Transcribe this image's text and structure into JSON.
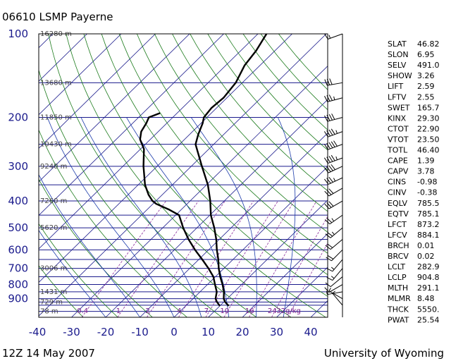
{
  "header": {
    "title": "06610 LSMP Payerne"
  },
  "footer": {
    "left": "12Z 14 May 2007",
    "right": "University of Wyoming"
  },
  "colors": {
    "isobar": "#1a1a8c",
    "isotherm": "#1a1a8c",
    "dry_adiabat": "#1a7a1a",
    "moist_adiabat": "#1a3aaa",
    "mixing_ratio": "#8a2a9a",
    "profile": "#000000"
  },
  "chart_data": {
    "type": "line",
    "title": "06610 LSMP Payerne",
    "xlabel": "",
    "ylabel": "",
    "pressure_levels": [
      100,
      200,
      300,
      400,
      500,
      600,
      700,
      800,
      900
    ],
    "pressure_tick_labels": [
      "100",
      "200",
      "300",
      "400",
      "500",
      "600",
      "700",
      "800",
      "900"
    ],
    "isobars_drawn": [
      100,
      150,
      200,
      250,
      300,
      350,
      400,
      450,
      500,
      550,
      600,
      650,
      700,
      750,
      800,
      850,
      900,
      925,
      950,
      1000
    ],
    "temperature_ticks": [
      -40,
      -30,
      -20,
      -10,
      0,
      10,
      20,
      30,
      40
    ],
    "temperature_tick_labels": [
      "-40",
      "-30",
      "-20",
      "-10",
      "0",
      "10",
      "20",
      "30",
      "40"
    ],
    "xlim": [
      -40,
      45
    ],
    "ylim": [
      1050,
      100
    ],
    "log_pressure": true,
    "skew": true,
    "height_labels": [
      {
        "p": 100,
        "label": "16280 m"
      },
      {
        "p": 150,
        "label": "13680 m"
      },
      {
        "p": 200,
        "label": "11850 m"
      },
      {
        "p": 250,
        "label": "10430 m"
      },
      {
        "p": 300,
        "label": "9240 m"
      },
      {
        "p": 400,
        "label": "7260 m"
      },
      {
        "p": 500,
        "label": "5620 m"
      },
      {
        "p": 700,
        "label": "3006 m"
      },
      {
        "p": 850,
        "label": "1431 m"
      },
      {
        "p": 925,
        "label": "729 m"
      },
      {
        "p": 1000,
        "label": "78 m"
      }
    ],
    "mixing_ratio_labels": [
      "0.4",
      "1",
      "2",
      "4",
      "7",
      "10",
      "16",
      "24",
      "32g/kg"
    ],
    "mixing_ratio_values": [
      0.4,
      1,
      2,
      4,
      7,
      10,
      16,
      24,
      32
    ],
    "series": [
      {
        "key": "temperature",
        "points": [
          {
            "p": 955,
            "t": 12.6
          },
          {
            "p": 925,
            "t": 10.4
          },
          {
            "p": 900,
            "t": 9.0
          },
          {
            "p": 850,
            "t": 7.0
          },
          {
            "p": 800,
            "t": 4.4
          },
          {
            "p": 750,
            "t": 1.4
          },
          {
            "p": 700,
            "t": -1.5
          },
          {
            "p": 650,
            "t": -4.3
          },
          {
            "p": 600,
            "t": -7.6
          },
          {
            "p": 550,
            "t": -10.9
          },
          {
            "p": 500,
            "t": -14.9
          },
          {
            "p": 450,
            "t": -19.7
          },
          {
            "p": 400,
            "t": -24.1
          },
          {
            "p": 350,
            "t": -29.6
          },
          {
            "p": 300,
            "t": -36.9
          },
          {
            "p": 250,
            "t": -45.3
          },
          {
            "p": 230,
            "t": -47.5
          },
          {
            "p": 210,
            "t": -49.5
          },
          {
            "p": 200,
            "t": -50.9
          },
          {
            "p": 185,
            "t": -51.5
          },
          {
            "p": 170,
            "t": -51.0
          },
          {
            "p": 150,
            "t": -51.9
          },
          {
            "p": 130,
            "t": -54.5
          },
          {
            "p": 115,
            "t": -55.5
          },
          {
            "p": 100,
            "t": -57.5
          }
        ]
      },
      {
        "key": "dewpoint",
        "points": [
          {
            "p": 955,
            "t": 10.0
          },
          {
            "p": 925,
            "t": 8.0
          },
          {
            "p": 900,
            "t": 6.6
          },
          {
            "p": 850,
            "t": 4.9
          },
          {
            "p": 800,
            "t": 2.2
          },
          {
            "p": 750,
            "t": -0.6
          },
          {
            "p": 700,
            "t": -4.5
          },
          {
            "p": 650,
            "t": -9.0
          },
          {
            "p": 600,
            "t": -14.0
          },
          {
            "p": 550,
            "t": -19.0
          },
          {
            "p": 500,
            "t": -24.0
          },
          {
            "p": 450,
            "t": -29.0
          },
          {
            "p": 430,
            "t": -33.5
          },
          {
            "p": 410,
            "t": -39.0
          },
          {
            "p": 400,
            "t": -41.0
          },
          {
            "p": 380,
            "t": -44.0
          },
          {
            "p": 350,
            "t": -48.0
          },
          {
            "p": 300,
            "t": -54.0
          },
          {
            "p": 260,
            "t": -59.0
          },
          {
            "p": 240,
            "t": -63.0
          },
          {
            "p": 225,
            "t": -65.0
          },
          {
            "p": 210,
            "t": -66.0
          },
          {
            "p": 200,
            "t": -67.0
          },
          {
            "p": 193,
            "t": -65.0
          }
        ]
      }
    ],
    "wind_barbs": [
      {
        "p": 100,
        "dir": 250,
        "kt": 15
      },
      {
        "p": 150,
        "dir": 260,
        "kt": 30
      },
      {
        "p": 170,
        "dir": 255,
        "kt": 35
      },
      {
        "p": 200,
        "dir": 255,
        "kt": 40
      },
      {
        "p": 225,
        "dir": 250,
        "kt": 45
      },
      {
        "p": 250,
        "dir": 250,
        "kt": 50
      },
      {
        "p": 280,
        "dir": 250,
        "kt": 45
      },
      {
        "p": 300,
        "dir": 245,
        "kt": 40
      },
      {
        "p": 330,
        "dir": 245,
        "kt": 35
      },
      {
        "p": 360,
        "dir": 240,
        "kt": 30
      },
      {
        "p": 400,
        "dir": 240,
        "kt": 30
      },
      {
        "p": 450,
        "dir": 235,
        "kt": 25
      },
      {
        "p": 500,
        "dir": 230,
        "kt": 25
      },
      {
        "p": 550,
        "dir": 230,
        "kt": 20
      },
      {
        "p": 600,
        "dir": 225,
        "kt": 20
      },
      {
        "p": 650,
        "dir": 220,
        "kt": 15
      },
      {
        "p": 700,
        "dir": 220,
        "kt": 15
      },
      {
        "p": 750,
        "dir": 230,
        "kt": 10
      },
      {
        "p": 800,
        "dir": 240,
        "kt": 10
      },
      {
        "p": 850,
        "dir": 260,
        "kt": 5
      },
      {
        "p": 900,
        "dir": 300,
        "kt": 5
      },
      {
        "p": 950,
        "dir": 320,
        "kt": 5
      }
    ],
    "indices": [
      {
        "name": "SLAT",
        "value": "46.82"
      },
      {
        "name": "SLON",
        "value": "6.95"
      },
      {
        "name": "SELV",
        "value": "491.0"
      },
      {
        "name": "SHOW",
        "value": "3.26"
      },
      {
        "name": "LIFT",
        "value": "2.59"
      },
      {
        "name": "LFTV",
        "value": "2.55"
      },
      {
        "name": "SWET",
        "value": "165.7"
      },
      {
        "name": "KINX",
        "value": "29.30"
      },
      {
        "name": "CTOT",
        "value": "22.90"
      },
      {
        "name": "VTOT",
        "value": "23.50"
      },
      {
        "name": "TOTL",
        "value": "46.40"
      },
      {
        "name": "CAPE",
        "value": "1.39"
      },
      {
        "name": "CAPV",
        "value": "3.78"
      },
      {
        "name": "CINS",
        "value": "-0.98"
      },
      {
        "name": "CINV",
        "value": "-0.38"
      },
      {
        "name": "EQLV",
        "value": "785.5"
      },
      {
        "name": "EQTV",
        "value": "785.1"
      },
      {
        "name": "LFCT",
        "value": "873.2"
      },
      {
        "name": "LFCV",
        "value": "884.1"
      },
      {
        "name": "BRCH",
        "value": "0.01"
      },
      {
        "name": "BRCV",
        "value": "0.02"
      },
      {
        "name": "LCLT",
        "value": "282.9"
      },
      {
        "name": "LCLP",
        "value": "904.8"
      },
      {
        "name": "MLTH",
        "value": "291.1"
      },
      {
        "name": "MLMR",
        "value": "8.48"
      },
      {
        "name": "THCK",
        "value": "5550."
      },
      {
        "name": "PWAT",
        "value": "25.54"
      }
    ]
  }
}
